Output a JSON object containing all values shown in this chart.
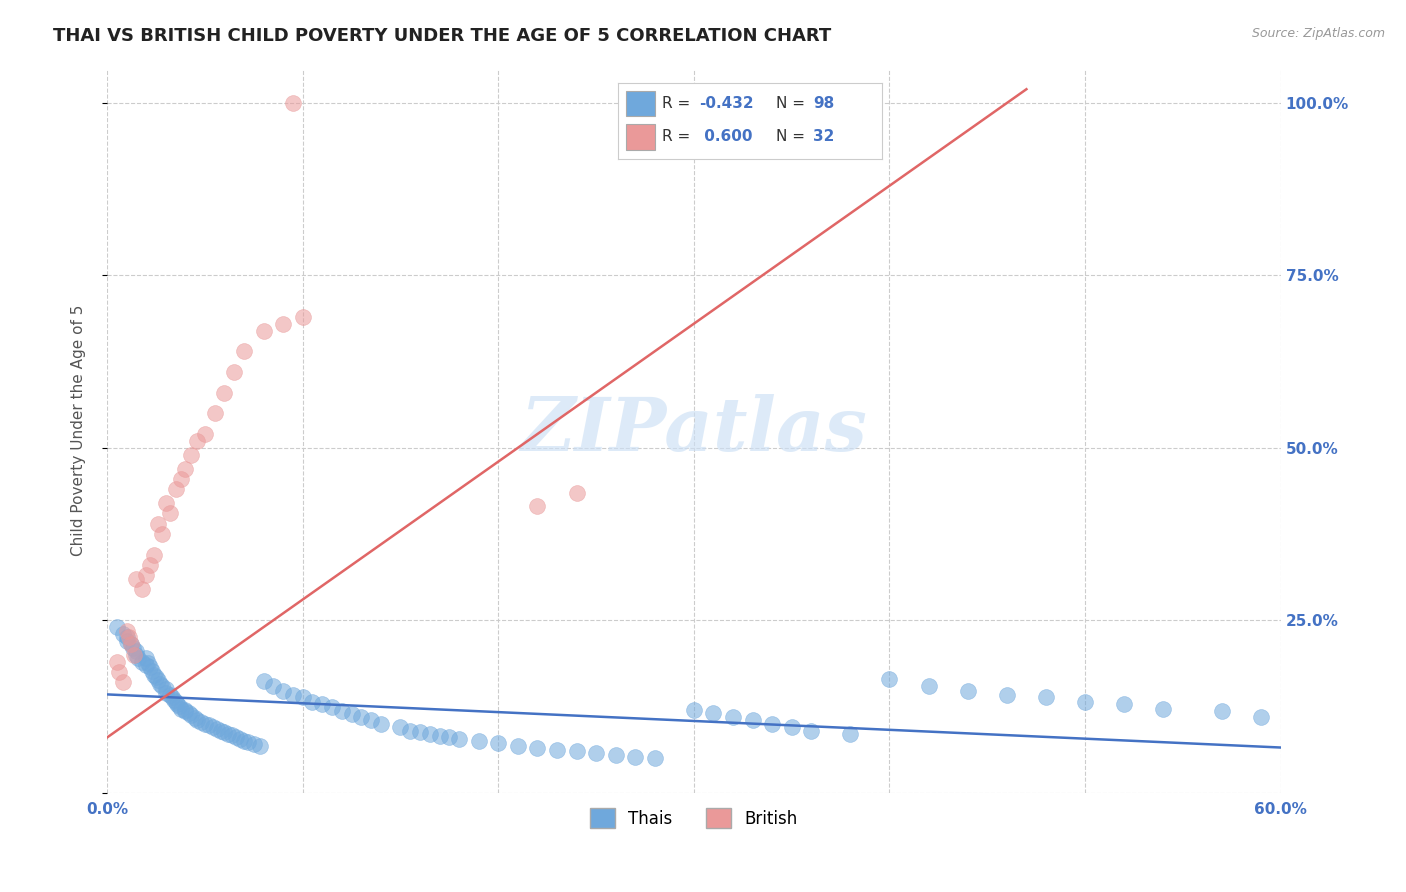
{
  "title": "THAI VS BRITISH CHILD POVERTY UNDER THE AGE OF 5 CORRELATION CHART",
  "source": "Source: ZipAtlas.com",
  "ylabel": "Child Poverty Under the Age of 5",
  "xlim": [
    0.0,
    0.6
  ],
  "ylim": [
    0.0,
    1.05
  ],
  "yticks": [
    0.0,
    0.25,
    0.5,
    0.75,
    1.0
  ],
  "yticklabels_right": [
    "",
    "25.0%",
    "50.0%",
    "75.0%",
    "100.0%"
  ],
  "thai_color": "#6fa8dc",
  "british_color": "#ea9999",
  "thai_R": -0.432,
  "thai_N": 98,
  "british_R": 0.6,
  "british_N": 32,
  "thai_line_color": "#4472c4",
  "british_line_color": "#e06666",
  "background_color": "#ffffff",
  "title_fontsize": 13,
  "axis_label_fontsize": 11,
  "tick_fontsize": 11,
  "legend_fontsize": 12,
  "thai_x": [
    0.005,
    0.008,
    0.01,
    0.01,
    0.012,
    0.013,
    0.015,
    0.015,
    0.016,
    0.018,
    0.02,
    0.02,
    0.021,
    0.022,
    0.023,
    0.024,
    0.025,
    0.026,
    0.027,
    0.028,
    0.03,
    0.03,
    0.032,
    0.033,
    0.034,
    0.035,
    0.036,
    0.037,
    0.038,
    0.04,
    0.04,
    0.042,
    0.043,
    0.045,
    0.046,
    0.048,
    0.05,
    0.052,
    0.054,
    0.056,
    0.058,
    0.06,
    0.062,
    0.064,
    0.066,
    0.068,
    0.07,
    0.072,
    0.075,
    0.078,
    0.08,
    0.085,
    0.09,
    0.095,
    0.1,
    0.105,
    0.11,
    0.115,
    0.12,
    0.125,
    0.13,
    0.135,
    0.14,
    0.15,
    0.155,
    0.16,
    0.165,
    0.17,
    0.175,
    0.18,
    0.19,
    0.2,
    0.21,
    0.22,
    0.23,
    0.24,
    0.25,
    0.26,
    0.27,
    0.28,
    0.3,
    0.31,
    0.32,
    0.33,
    0.34,
    0.35,
    0.36,
    0.38,
    0.4,
    0.42,
    0.44,
    0.46,
    0.48,
    0.5,
    0.52,
    0.54,
    0.57,
    0.59
  ],
  "thai_y": [
    0.24,
    0.23,
    0.225,
    0.22,
    0.215,
    0.21,
    0.205,
    0.2,
    0.195,
    0.19,
    0.185,
    0.195,
    0.188,
    0.182,
    0.176,
    0.17,
    0.168,
    0.163,
    0.158,
    0.155,
    0.15,
    0.145,
    0.142,
    0.138,
    0.135,
    0.132,
    0.128,
    0.125,
    0.122,
    0.118,
    0.12,
    0.115,
    0.112,
    0.108,
    0.105,
    0.102,
    0.1,
    0.098,
    0.095,
    0.093,
    0.09,
    0.088,
    0.085,
    0.083,
    0.08,
    0.078,
    0.075,
    0.073,
    0.07,
    0.068,
    0.162,
    0.155,
    0.148,
    0.142,
    0.138,
    0.132,
    0.128,
    0.124,
    0.118,
    0.114,
    0.11,
    0.105,
    0.1,
    0.095,
    0.09,
    0.088,
    0.085,
    0.082,
    0.08,
    0.078,
    0.075,
    0.072,
    0.068,
    0.065,
    0.062,
    0.06,
    0.058,
    0.055,
    0.052,
    0.05,
    0.12,
    0.115,
    0.11,
    0.105,
    0.1,
    0.095,
    0.09,
    0.085,
    0.165,
    0.155,
    0.148,
    0.142,
    0.138,
    0.132,
    0.128,
    0.122,
    0.118,
    0.11
  ],
  "british_x": [
    0.005,
    0.006,
    0.008,
    0.01,
    0.011,
    0.012,
    0.014,
    0.015,
    0.018,
    0.02,
    0.022,
    0.024,
    0.026,
    0.028,
    0.03,
    0.032,
    0.035,
    0.038,
    0.04,
    0.043,
    0.046,
    0.05,
    0.055,
    0.06,
    0.065,
    0.07,
    0.08,
    0.09,
    0.1,
    0.22,
    0.24,
    0.095
  ],
  "british_y": [
    0.19,
    0.175,
    0.16,
    0.235,
    0.225,
    0.215,
    0.2,
    0.31,
    0.295,
    0.315,
    0.33,
    0.345,
    0.39,
    0.375,
    0.42,
    0.405,
    0.44,
    0.455,
    0.47,
    0.49,
    0.51,
    0.52,
    0.55,
    0.58,
    0.61,
    0.64,
    0.67,
    0.68,
    0.69,
    0.415,
    0.435,
    1.0
  ]
}
